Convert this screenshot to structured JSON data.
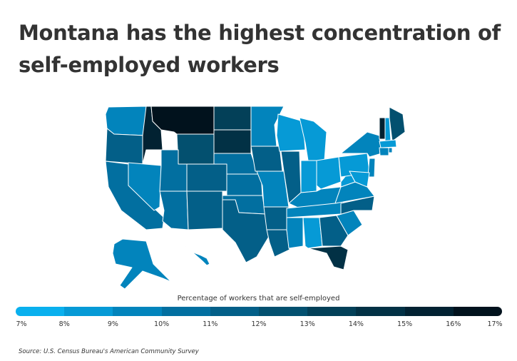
{
  "title": "Montana has the highest concentration of self-employed workers",
  "legend": {
    "title": "Percentage of workers that are self-employed",
    "ticks": [
      "7%",
      "8%",
      "9%",
      "10%",
      "11%",
      "12%",
      "13%",
      "14%",
      "15%",
      "16%",
      "17%"
    ],
    "colors": [
      "#0ab0ee",
      "#069ad6",
      "#0284bc",
      "#026fa0",
      "#035f88",
      "#03506f",
      "#034058",
      "#023145",
      "#022232",
      "#01121d"
    ]
  },
  "source": {
    "label": "Source:",
    "text": "U.S. Census Bureau's American Community Survey"
  },
  "map_data": {
    "type": "choropleth",
    "region": "United States",
    "metric": "Percentage of workers that are self-employed",
    "highlight": "Montana"
  }
}
